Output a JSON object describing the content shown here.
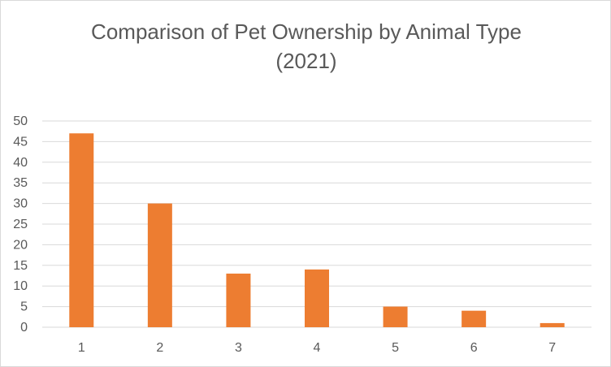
{
  "chart_data": {
    "type": "bar",
    "title_lines": [
      "Comparison of Pet Ownership by Animal Type",
      "(2021)"
    ],
    "categories": [
      "1",
      "2",
      "3",
      "4",
      "5",
      "6",
      "7"
    ],
    "values": [
      47,
      30,
      13,
      14,
      5,
      4,
      1
    ],
    "ylim": [
      0,
      50
    ],
    "yticks": [
      0,
      5,
      10,
      15,
      20,
      25,
      30,
      35,
      40,
      45,
      50
    ],
    "grid": true,
    "bar_color": "#ED7D31",
    "grid_color": "#D9D9D9"
  }
}
